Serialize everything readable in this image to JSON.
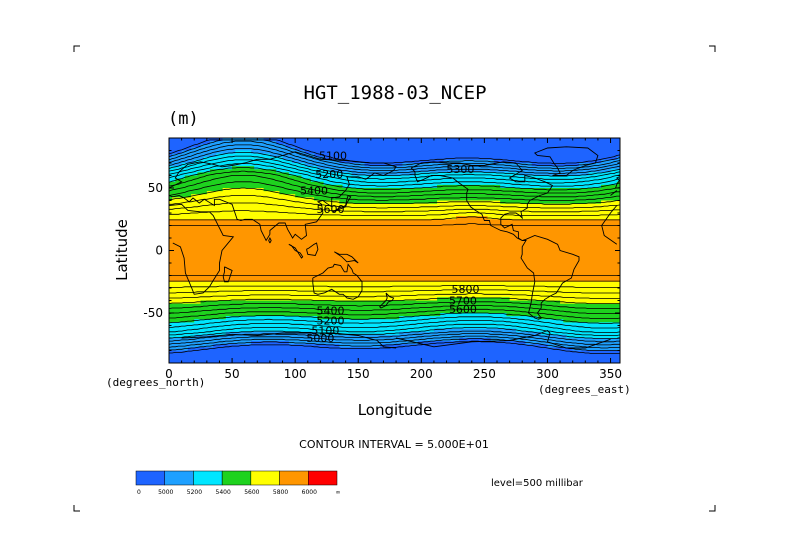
{
  "chart_data": {
    "type": "heatmap",
    "title": "HGT_1988-03_NCEP",
    "units": "(m)",
    "xlabel": "Longitude",
    "ylabel": "Latitude",
    "x_unit_label": "(degrees_east)",
    "y_unit_label": "(degrees_north)",
    "xlim": [
      0,
      357.5
    ],
    "ylim": [
      -90,
      90
    ],
    "x_ticks": [
      0,
      50,
      100,
      150,
      200,
      250,
      300,
      350
    ],
    "y_ticks": [
      -50,
      0,
      50
    ],
    "contour_interval_label": "CONTOUR INTERVAL = 5.000E+01",
    "level_label": "level=500 millibar",
    "contour_labels": [
      {
        "text": "5100",
        "lon": 130,
        "lat": 73
      },
      {
        "text": "5200",
        "lon": 127,
        "lat": 58
      },
      {
        "text": "5300",
        "lon": 231,
        "lat": 62
      },
      {
        "text": "5400",
        "lon": 115,
        "lat": 45
      },
      {
        "text": "5600",
        "lon": 128,
        "lat": 30
      },
      {
        "text": "5800",
        "lon": 235,
        "lat": -34
      },
      {
        "text": "5700",
        "lon": 233,
        "lat": -43
      },
      {
        "text": "5600",
        "lon": 233,
        "lat": -50
      },
      {
        "text": "5400",
        "lon": 128,
        "lat": -51
      },
      {
        "text": "5200",
        "lon": 128,
        "lat": -59
      },
      {
        "text": "5100",
        "lon": 124,
        "lat": -67
      },
      {
        "text": "5000",
        "lon": 120,
        "lat": -73
      }
    ],
    "colorbar": {
      "colors": [
        "#1e64ff",
        "#1ea0ff",
        "#00e6ff",
        "#1ed21e",
        "#ffff00",
        "#ff9600",
        "#ff0000"
      ],
      "tick_labels": [
        "0",
        "5000",
        "5200",
        "5400",
        "5600",
        "5800",
        "6000",
        "∞"
      ]
    },
    "band_colors": {
      "blue": "#1e64ff",
      "lightblue": "#1ea0ff",
      "cyan": "#00e6ff",
      "green": "#1ed21e",
      "yellow": "#ffff00",
      "orange": "#ff9600"
    }
  }
}
